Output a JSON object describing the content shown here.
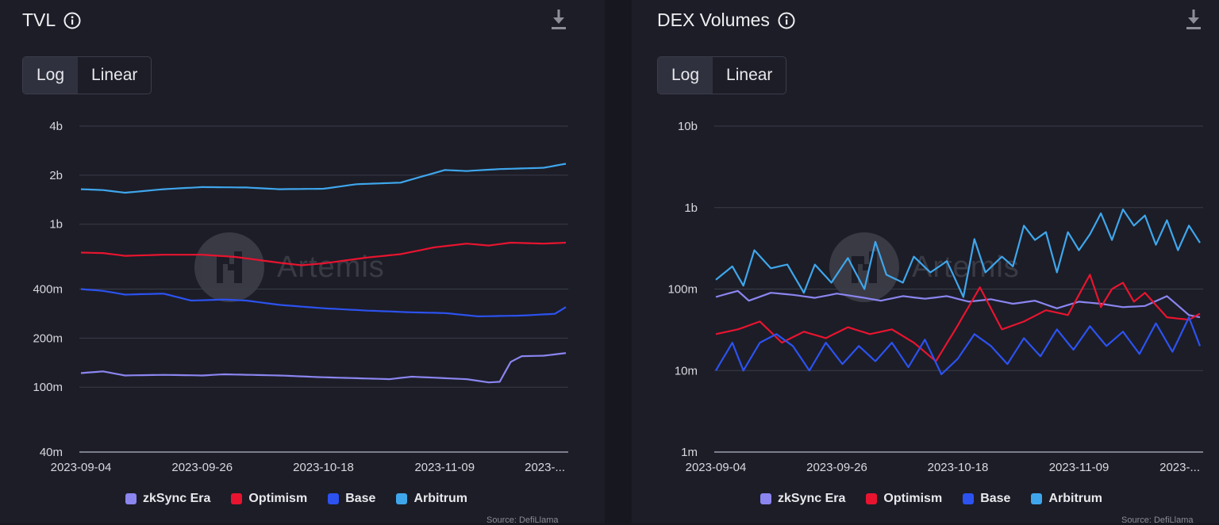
{
  "chart_data": [
    {
      "type": "line",
      "title": "TVL",
      "scale": "log",
      "scale_options": [
        "Log",
        "Linear"
      ],
      "active_scale": "Log",
      "ylim": [
        40000000,
        4000000000
      ],
      "y_ticks": [
        {
          "value": 40000000,
          "label": "40m"
        },
        {
          "value": 100000000,
          "label": "100m"
        },
        {
          "value": 200000000,
          "label": "200m"
        },
        {
          "value": 400000000,
          "label": "400m"
        },
        {
          "value": 1000000000,
          "label": "1b"
        },
        {
          "value": 2000000000,
          "label": "2b"
        },
        {
          "value": 4000000000,
          "label": "4b"
        }
      ],
      "x_tick_labels": [
        "2023-09-04",
        "2023-09-26",
        "2023-10-18",
        "2023-11-09",
        "2023-..."
      ],
      "x_tick_index": [
        0,
        22,
        44,
        66,
        88
      ],
      "points_per_series": 89,
      "series": [
        {
          "name": "zkSync Era",
          "color": "#8b85f0",
          "anchors": [
            [
              0,
              122000000
            ],
            [
              4,
              125000000
            ],
            [
              8,
              118000000
            ],
            [
              15,
              119000000
            ],
            [
              22,
              118000000
            ],
            [
              26,
              120000000
            ],
            [
              36,
              118000000
            ],
            [
              44,
              115000000
            ],
            [
              56,
              112000000
            ],
            [
              60,
              116000000
            ],
            [
              70,
              112000000
            ],
            [
              74,
              107000000
            ],
            [
              76,
              108000000
            ],
            [
              78,
              143000000
            ],
            [
              80,
              155000000
            ],
            [
              84,
              156000000
            ],
            [
              88,
              162000000
            ]
          ]
        },
        {
          "name": "Optimism",
          "color": "#e8142f",
          "anchors": [
            [
              0,
              670000000
            ],
            [
              4,
              665000000
            ],
            [
              8,
              640000000
            ],
            [
              15,
              650000000
            ],
            [
              22,
              650000000
            ],
            [
              28,
              630000000
            ],
            [
              36,
              580000000
            ],
            [
              40,
              560000000
            ],
            [
              44,
              575000000
            ],
            [
              52,
              625000000
            ],
            [
              58,
              655000000
            ],
            [
              64,
              720000000
            ],
            [
              70,
              760000000
            ],
            [
              74,
              740000000
            ],
            [
              78,
              770000000
            ],
            [
              84,
              760000000
            ],
            [
              88,
              770000000
            ]
          ]
        },
        {
          "name": "Base",
          "color": "#2c52f0",
          "anchors": [
            [
              0,
              400000000
            ],
            [
              4,
              390000000
            ],
            [
              8,
              370000000
            ],
            [
              15,
              375000000
            ],
            [
              20,
              340000000
            ],
            [
              26,
              345000000
            ],
            [
              30,
              340000000
            ],
            [
              36,
              320000000
            ],
            [
              44,
              305000000
            ],
            [
              52,
              295000000
            ],
            [
              60,
              288000000
            ],
            [
              66,
              285000000
            ],
            [
              72,
              272000000
            ],
            [
              80,
              275000000
            ],
            [
              86,
              282000000
            ],
            [
              88,
              310000000
            ]
          ]
        },
        {
          "name": "Arbitrum",
          "color": "#3fa6ec",
          "anchors": [
            [
              0,
              1640000000
            ],
            [
              4,
              1620000000
            ],
            [
              8,
              1560000000
            ],
            [
              15,
              1640000000
            ],
            [
              22,
              1690000000
            ],
            [
              30,
              1680000000
            ],
            [
              36,
              1640000000
            ],
            [
              44,
              1650000000
            ],
            [
              50,
              1760000000
            ],
            [
              58,
              1800000000
            ],
            [
              66,
              2150000000
            ],
            [
              70,
              2120000000
            ],
            [
              76,
              2180000000
            ],
            [
              84,
              2220000000
            ],
            [
              88,
              2350000000
            ]
          ]
        }
      ]
    },
    {
      "type": "line",
      "title": "DEX Volumes",
      "scale": "log",
      "scale_options": [
        "Log",
        "Linear"
      ],
      "active_scale": "Log",
      "ylim": [
        1000000,
        10000000000
      ],
      "y_ticks": [
        {
          "value": 1000000,
          "label": "1m"
        },
        {
          "value": 10000000,
          "label": "10m"
        },
        {
          "value": 100000000,
          "label": "100m"
        },
        {
          "value": 1000000000,
          "label": "1b"
        },
        {
          "value": 10000000000,
          "label": "10b"
        }
      ],
      "x_tick_labels": [
        "2023-09-04",
        "2023-09-26",
        "2023-10-18",
        "2023-11-09",
        "2023-..."
      ],
      "x_tick_index": [
        0,
        22,
        44,
        66,
        88
      ],
      "points_per_series": 89,
      "series": [
        {
          "name": "zkSync Era",
          "color": "#8b85f0",
          "anchors": [
            [
              0,
              80000000
            ],
            [
              4,
              95000000
            ],
            [
              6,
              72000000
            ],
            [
              10,
              90000000
            ],
            [
              14,
              85000000
            ],
            [
              18,
              78000000
            ],
            [
              22,
              88000000
            ],
            [
              26,
              80000000
            ],
            [
              30,
              72000000
            ],
            [
              34,
              82000000
            ],
            [
              38,
              76000000
            ],
            [
              42,
              82000000
            ],
            [
              46,
              70000000
            ],
            [
              50,
              75000000
            ],
            [
              54,
              66000000
            ],
            [
              58,
              72000000
            ],
            [
              62,
              58000000
            ],
            [
              66,
              70000000
            ],
            [
              70,
              66000000
            ],
            [
              74,
              60000000
            ],
            [
              78,
              62000000
            ],
            [
              82,
              82000000
            ],
            [
              86,
              48000000
            ],
            [
              88,
              45000000
            ]
          ]
        },
        {
          "name": "Optimism",
          "color": "#e8142f",
          "anchors": [
            [
              0,
              28000000
            ],
            [
              4,
              32000000
            ],
            [
              8,
              40000000
            ],
            [
              12,
              22000000
            ],
            [
              16,
              30000000
            ],
            [
              20,
              25000000
            ],
            [
              24,
              34000000
            ],
            [
              28,
              28000000
            ],
            [
              32,
              32000000
            ],
            [
              36,
              22000000
            ],
            [
              40,
              13000000
            ],
            [
              44,
              36000000
            ],
            [
              48,
              105000000
            ],
            [
              52,
              32000000
            ],
            [
              56,
              40000000
            ],
            [
              60,
              55000000
            ],
            [
              64,
              48000000
            ],
            [
              68,
              150000000
            ],
            [
              70,
              60000000
            ],
            [
              72,
              100000000
            ],
            [
              74,
              120000000
            ],
            [
              76,
              70000000
            ],
            [
              78,
              90000000
            ],
            [
              82,
              45000000
            ],
            [
              86,
              42000000
            ],
            [
              88,
              50000000
            ]
          ]
        },
        {
          "name": "Base",
          "color": "#2c52f0",
          "anchors": [
            [
              0,
              10000000
            ],
            [
              3,
              22000000
            ],
            [
              5,
              10000000
            ],
            [
              8,
              22000000
            ],
            [
              11,
              28000000
            ],
            [
              14,
              20000000
            ],
            [
              17,
              10000000
            ],
            [
              20,
              22000000
            ],
            [
              23,
              12000000
            ],
            [
              26,
              20000000
            ],
            [
              29,
              13000000
            ],
            [
              32,
              22000000
            ],
            [
              35,
              11000000
            ],
            [
              38,
              24000000
            ],
            [
              41,
              9000000
            ],
            [
              44,
              14000000
            ],
            [
              47,
              28000000
            ],
            [
              50,
              20000000
            ],
            [
              53,
              12000000
            ],
            [
              56,
              25000000
            ],
            [
              59,
              15000000
            ],
            [
              62,
              32000000
            ],
            [
              65,
              18000000
            ],
            [
              68,
              35000000
            ],
            [
              71,
              20000000
            ],
            [
              74,
              30000000
            ],
            [
              77,
              16000000
            ],
            [
              80,
              38000000
            ],
            [
              83,
              17000000
            ],
            [
              86,
              45000000
            ],
            [
              88,
              20000000
            ]
          ]
        },
        {
          "name": "Arbitrum",
          "color": "#3fa6ec",
          "anchors": [
            [
              0,
              130000000
            ],
            [
              3,
              190000000
            ],
            [
              5,
              110000000
            ],
            [
              7,
              300000000
            ],
            [
              10,
              180000000
            ],
            [
              13,
              200000000
            ],
            [
              16,
              90000000
            ],
            [
              18,
              200000000
            ],
            [
              21,
              120000000
            ],
            [
              24,
              240000000
            ],
            [
              27,
              100000000
            ],
            [
              29,
              380000000
            ],
            [
              31,
              150000000
            ],
            [
              34,
              120000000
            ],
            [
              36,
              250000000
            ],
            [
              39,
              160000000
            ],
            [
              42,
              220000000
            ],
            [
              45,
              80000000
            ],
            [
              47,
              410000000
            ],
            [
              49,
              160000000
            ],
            [
              52,
              250000000
            ],
            [
              54,
              190000000
            ],
            [
              56,
              600000000
            ],
            [
              58,
              400000000
            ],
            [
              60,
              500000000
            ],
            [
              62,
              160000000
            ],
            [
              64,
              500000000
            ],
            [
              66,
              300000000
            ],
            [
              68,
              470000000
            ],
            [
              70,
              850000000
            ],
            [
              72,
              400000000
            ],
            [
              74,
              950000000
            ],
            [
              76,
              600000000
            ],
            [
              78,
              800000000
            ],
            [
              80,
              350000000
            ],
            [
              82,
              700000000
            ],
            [
              84,
              300000000
            ],
            [
              86,
              600000000
            ],
            [
              88,
              370000000
            ]
          ]
        }
      ]
    }
  ],
  "panels": [
    {
      "title": "TVL",
      "source": "Source: DefiLlama"
    },
    {
      "title": "DEX Volumes",
      "source": "Source: DefiLlama"
    }
  ],
  "watermark": "Artemis",
  "legend": [
    {
      "name": "zkSync Era",
      "color": "#8b85f0"
    },
    {
      "name": "Optimism",
      "color": "#e8142f"
    },
    {
      "name": "Base",
      "color": "#2c52f0"
    },
    {
      "name": "Arbitrum",
      "color": "#3fa6ec"
    }
  ],
  "icons": {
    "info": "info-circle-icon",
    "download": "download-icon",
    "logo": "artemis-logo-icon"
  }
}
